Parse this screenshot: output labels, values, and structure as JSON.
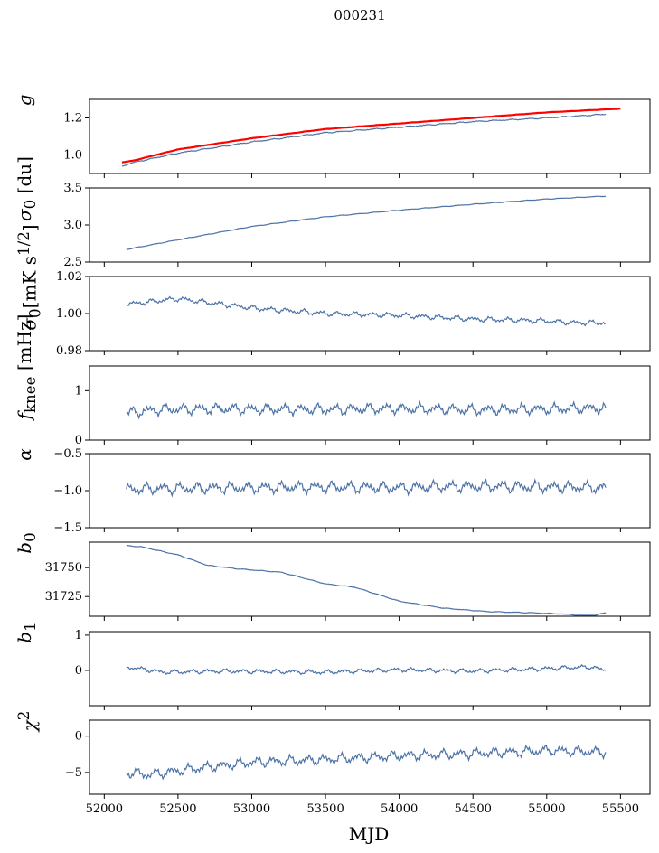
{
  "figure": {
    "title": "000231",
    "xlabel": "MJD"
  },
  "chart_data": [
    {
      "type": "line",
      "ylabel": "g",
      "ylabel_html": "<i>g</i>",
      "xlim": [
        51900,
        55700
      ],
      "ylim": [
        0.9,
        1.3
      ],
      "yticks": [
        1.0,
        1.2
      ],
      "ytick_labels": [
        "1.0",
        "1.2"
      ],
      "series": [
        {
          "color": "#4c72a6",
          "x": [
            52120,
            52200,
            52500,
            53000,
            53500,
            54000,
            54500,
            55000,
            55400
          ],
          "y": [
            0.94,
            0.96,
            1.01,
            1.07,
            1.12,
            1.15,
            1.18,
            1.2,
            1.22
          ]
        },
        {
          "color": "#ff0000",
          "x": [
            52120,
            52200,
            52500,
            53000,
            53500,
            54000,
            54500,
            55000,
            55500
          ],
          "y": [
            0.96,
            0.97,
            1.03,
            1.09,
            1.14,
            1.17,
            1.2,
            1.23,
            1.25
          ]
        }
      ]
    },
    {
      "type": "line",
      "ylabel": "σ0 [du]",
      "ylabel_html": "<i>σ</i><sub>0</sub> [du]",
      "xlim": [
        51900,
        55700
      ],
      "ylim": [
        2.5,
        3.5
      ],
      "yticks": [
        2.5,
        3.0,
        3.5
      ],
      "ytick_labels": [
        "2.5",
        "3.0",
        "3.5"
      ],
      "series": [
        {
          "color": "#4c72a6",
          "x": [
            52150,
            52500,
            53000,
            53500,
            54000,
            54500,
            55000,
            55400
          ],
          "y": [
            2.67,
            2.8,
            2.98,
            3.11,
            3.2,
            3.28,
            3.35,
            3.39
          ]
        }
      ]
    },
    {
      "type": "line",
      "ylabel": "σ0 [mK s1/2]",
      "ylabel_html": "<i>σ</i><sub>0</sub>[mK s<sup>1/2</sup>]",
      "xlim": [
        51900,
        55700
      ],
      "ylim": [
        0.98,
        1.02
      ],
      "yticks": [
        0.98,
        1.0,
        1.02
      ],
      "ytick_labels": [
        "0.98",
        "1.00",
        "1.02"
      ],
      "series": [
        {
          "color": "#4c72a6",
          "x": [
            52150,
            52500,
            52700,
            53000,
            53500,
            54000,
            54500,
            55000,
            55200,
            55400
          ],
          "y": [
            1.005,
            1.008,
            1.006,
            1.003,
            1.0,
            0.999,
            0.997,
            0.996,
            0.995,
            0.995
          ]
        }
      ]
    },
    {
      "type": "line",
      "ylabel": "fknee [mHz]",
      "ylabel_html": "<i>f</i><sub>knee</sub> [mHz]",
      "xlim": [
        51900,
        55700
      ],
      "ylim": [
        0,
        1.5
      ],
      "yticks": [
        0,
        1
      ],
      "ytick_labels": [
        "0",
        "1"
      ],
      "series": [
        {
          "color": "#4c72a6",
          "x": [
            52150,
            52400,
            52800,
            53500,
            54000,
            54500,
            55000,
            55400
          ],
          "y": [
            0.55,
            0.62,
            0.63,
            0.62,
            0.64,
            0.61,
            0.63,
            0.65
          ]
        }
      ]
    },
    {
      "type": "line",
      "ylabel": "α",
      "ylabel_html": "<i>α</i>",
      "xlim": [
        51900,
        55700
      ],
      "ylim": [
        -1.5,
        -0.5
      ],
      "yticks": [
        -1.5,
        -1.0,
        -0.5
      ],
      "ytick_labels": [
        "−1.5",
        "−1.0",
        "−0.5"
      ],
      "series": [
        {
          "color": "#4c72a6",
          "x": [
            52150,
            52500,
            53000,
            53500,
            54000,
            54500,
            55000,
            55400
          ],
          "y": [
            -0.98,
            -0.97,
            -0.96,
            -0.95,
            -0.96,
            -0.94,
            -0.95,
            -0.96
          ]
        }
      ]
    },
    {
      "type": "line",
      "ylabel": "b0",
      "ylabel_html": "<i>b</i><sub>0</sub>",
      "xlim": [
        51900,
        55700
      ],
      "ylim": [
        31708,
        31772
      ],
      "yticks": [
        31725,
        31750
      ],
      "ytick_labels": [
        "31725",
        "31750"
      ],
      "series": [
        {
          "color": "#4c72a6",
          "x": [
            52150,
            52250,
            52500,
            52700,
            52900,
            53200,
            53500,
            53700,
            54000,
            54300,
            54600,
            54900,
            55100,
            55300,
            55400
          ],
          "y": [
            31769,
            31768,
            31761,
            31752,
            31749,
            31746,
            31736,
            31733,
            31721,
            31715,
            31712,
            31711,
            31710,
            31708,
            31711
          ]
        }
      ]
    },
    {
      "type": "line",
      "ylabel": "b1",
      "ylabel_html": "<i>b</i><sub>1</sub>",
      "xlim": [
        51900,
        55700
      ],
      "ylim": [
        -1,
        1.1
      ],
      "yticks": [
        0,
        1
      ],
      "ytick_labels": [
        "0",
        "1"
      ],
      "series": [
        {
          "color": "#4c72a6",
          "x": [
            52150,
            52400,
            52800,
            53500,
            54000,
            54500,
            55000,
            55300,
            55400
          ],
          "y": [
            0.1,
            -0.05,
            -0.02,
            -0.05,
            0.02,
            -0.02,
            0.05,
            0.1,
            0.0
          ]
        }
      ]
    },
    {
      "type": "line",
      "ylabel": "χ2",
      "ylabel_html": "<i>χ</i><sup>2</sup>",
      "xlim": [
        51900,
        55700
      ],
      "ylim": [
        -8,
        2.2
      ],
      "yticks": [
        -5,
        0
      ],
      "ytick_labels": [
        "−5",
        "0"
      ],
      "xticks": [
        52000,
        52500,
        53000,
        53500,
        54000,
        54500,
        55000,
        55500
      ],
      "xtick_labels": [
        "52000",
        "52500",
        "53000",
        "53500",
        "54000",
        "54500",
        "55000",
        "55500"
      ],
      "series": [
        {
          "color": "#4c72a6",
          "x": [
            52150,
            52300,
            52600,
            53000,
            53500,
            54000,
            54500,
            55000,
            55400
          ],
          "y": [
            -5.0,
            -5.3,
            -4.5,
            -3.6,
            -3.2,
            -2.7,
            -2.4,
            -2.0,
            -2.2
          ]
        }
      ]
    }
  ]
}
